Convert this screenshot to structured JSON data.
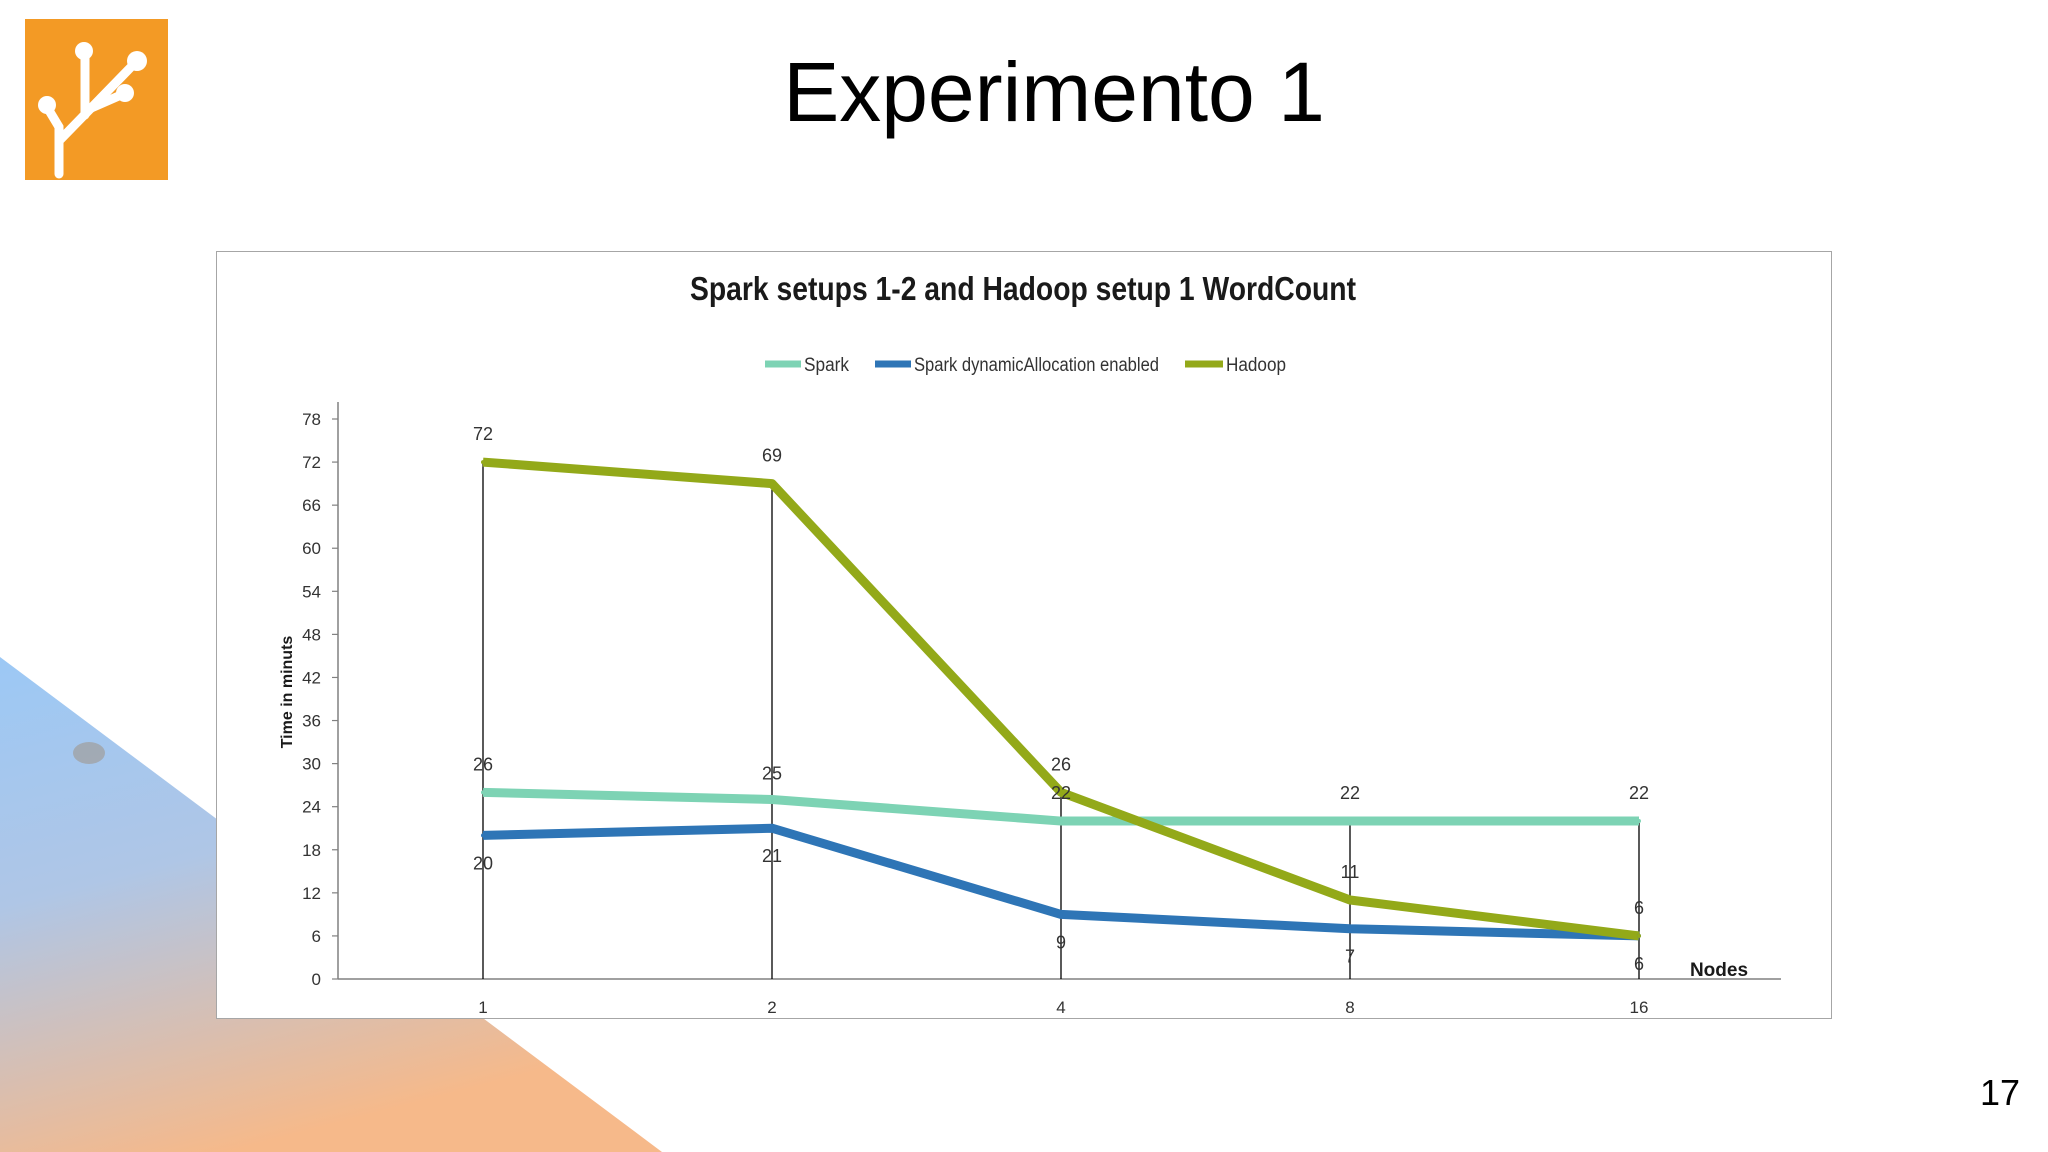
{
  "slide": {
    "title": "Experimento 1",
    "page_number": "17"
  },
  "colors": {
    "logo_orange": "#F39A25",
    "spark": "#7DD3B4",
    "spark_dynamic": "#2E75B6",
    "hadoop": "#93A919",
    "decor_blue": "#9CC8F5",
    "decor_peach": "#F6B98A"
  },
  "chart_data": {
    "type": "line",
    "title": "Spark setups 1-2 and Hadoop setup 1 WordCount",
    "xlabel": "Nodes",
    "ylabel": "Time in minuts",
    "categories": [
      "1",
      "2",
      "4",
      "8",
      "16"
    ],
    "ylim": [
      0,
      78
    ],
    "yticks": [
      "0",
      "6",
      "12",
      "18",
      "24",
      "30",
      "36",
      "42",
      "48",
      "54",
      "60",
      "66",
      "72",
      "78"
    ],
    "legend_position": "top",
    "grid": false,
    "drop_lines": true,
    "series": [
      {
        "name": "Spark",
        "color": "#7DD3B4",
        "values": [
          26,
          25,
          22,
          22,
          22
        ],
        "labels": [
          "26",
          "25",
          "22",
          "22",
          "22"
        ]
      },
      {
        "name": "Spark dynamicAllocation enabled",
        "color": "#2E75B6",
        "values": [
          20,
          21,
          9,
          7,
          6
        ],
        "labels": [
          "20",
          "21",
          "9",
          "7",
          "6"
        ]
      },
      {
        "name": "Hadoop",
        "color": "#93A919",
        "values": [
          72,
          69,
          26,
          11,
          6
        ],
        "labels": [
          "72",
          "69",
          "26",
          "11",
          "6"
        ]
      }
    ]
  }
}
